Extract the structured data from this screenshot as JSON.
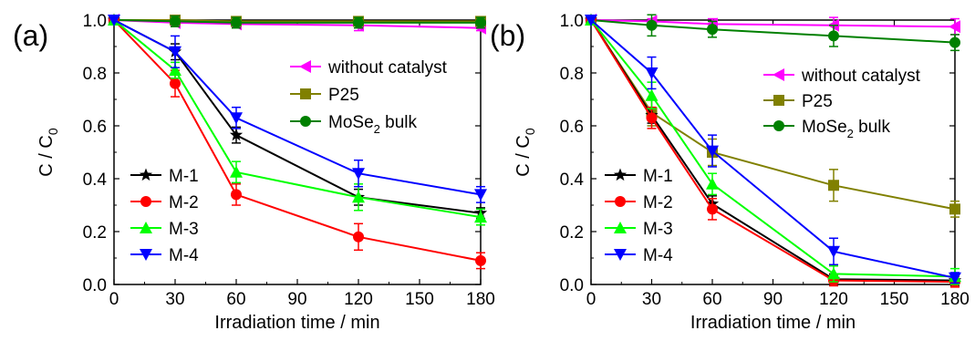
{
  "chart_data": [
    {
      "type": "line",
      "panel_label": "(a)",
      "xlabel": "Irradiation time / min",
      "ylabel": "C / C",
      "ylabel_sub": "0",
      "xlim": [
        0,
        180
      ],
      "ylim": [
        0.0,
        1.0
      ],
      "xticks": [
        "0",
        "30",
        "60",
        "90",
        "120",
        "150",
        "180"
      ],
      "yticks": [
        "0.0",
        "0.2",
        "0.4",
        "0.6",
        "0.8",
        "1.0"
      ],
      "x": [
        0,
        30,
        60,
        120,
        180
      ],
      "series": [
        {
          "name": "without catalyst",
          "marker": "triangle-left",
          "color": "#ff00ff",
          "values": [
            1.0,
            0.99,
            0.985,
            0.98,
            0.97
          ],
          "errors": [
            0,
            0.01,
            0.01,
            0.02,
            0.01
          ]
        },
        {
          "name": "P25",
          "marker": "square",
          "color": "#808000",
          "values": [
            1.0,
            1.0,
            0.995,
            0.995,
            0.995
          ],
          "errors": [
            0,
            0.01,
            0.01,
            0.01,
            0.01
          ]
        },
        {
          "name": "MoSe",
          "name_sub": "2",
          "name_suffix": " bulk",
          "marker": "circle",
          "color": "#008000",
          "values": [
            1.0,
            0.995,
            0.99,
            0.99,
            0.99
          ],
          "errors": [
            0,
            0.02,
            0.02,
            0.02,
            0.02
          ]
        },
        {
          "name": "M-1",
          "marker": "star",
          "color": "#000000",
          "values": [
            1.0,
            0.88,
            0.565,
            0.33,
            0.27
          ],
          "errors": [
            0,
            0.03,
            0.03,
            0.03,
            0.02
          ]
        },
        {
          "name": "M-2",
          "marker": "circle",
          "color": "#ff0000",
          "values": [
            1.0,
            0.76,
            0.34,
            0.18,
            0.09
          ],
          "errors": [
            0,
            0.05,
            0.04,
            0.05,
            0.03
          ]
        },
        {
          "name": "M-3",
          "marker": "triangle-up",
          "color": "#00ff00",
          "values": [
            1.0,
            0.81,
            0.425,
            0.33,
            0.255
          ],
          "errors": [
            0,
            0.03,
            0.04,
            0.05,
            0.03
          ]
        },
        {
          "name": "M-4",
          "marker": "triangle-down",
          "color": "#0000ff",
          "values": [
            1.0,
            0.88,
            0.63,
            0.42,
            0.34
          ],
          "errors": [
            0,
            0.06,
            0.04,
            0.05,
            0.03
          ]
        }
      ]
    },
    {
      "type": "line",
      "panel_label": "(b)",
      "xlabel": "Irradiation time / min",
      "ylabel": "C / C",
      "ylabel_sub": "0",
      "xlim": [
        0,
        180
      ],
      "ylim": [
        0.0,
        1.0
      ],
      "xticks": [
        "0",
        "30",
        "60",
        "90",
        "120",
        "150",
        "180"
      ],
      "yticks": [
        "0.0",
        "0.2",
        "0.4",
        "0.6",
        "0.8",
        "1.0"
      ],
      "x": [
        0,
        30,
        60,
        120,
        180
      ],
      "series": [
        {
          "name": "without catalyst",
          "marker": "triangle-left",
          "color": "#ff00ff",
          "values": [
            1.0,
            0.995,
            0.985,
            0.98,
            0.975
          ],
          "errors": [
            0,
            0.01,
            0.02,
            0.03,
            0.03
          ]
        },
        {
          "name": "P25",
          "marker": "square",
          "color": "#808000",
          "values": [
            1.0,
            0.65,
            0.5,
            0.375,
            0.285
          ],
          "errors": [
            0,
            0.05,
            0.05,
            0.06,
            0.03
          ]
        },
        {
          "name": "MoSe",
          "name_sub": "2",
          "name_suffix": " bulk",
          "marker": "circle",
          "color": "#008000",
          "values": [
            1.0,
            0.98,
            0.965,
            0.94,
            0.915
          ],
          "errors": [
            0,
            0.04,
            0.03,
            0.04,
            0.03
          ]
        },
        {
          "name": "M-1",
          "marker": "star",
          "color": "#000000",
          "values": [
            1.0,
            0.64,
            0.305,
            0.02,
            0.015
          ],
          "errors": [
            0,
            0.03,
            0.03,
            0.02,
            0.02
          ]
        },
        {
          "name": "M-2",
          "marker": "circle",
          "color": "#ff0000",
          "values": [
            1.0,
            0.63,
            0.285,
            0.015,
            0.01
          ],
          "errors": [
            0,
            0.04,
            0.04,
            0.02,
            0.02
          ]
        },
        {
          "name": "M-3",
          "marker": "triangle-up",
          "color": "#00ff00",
          "values": [
            1.0,
            0.715,
            0.38,
            0.04,
            0.03
          ],
          "errors": [
            0,
            0.05,
            0.04,
            0.03,
            0.03
          ]
        },
        {
          "name": "M-4",
          "marker": "triangle-down",
          "color": "#0000ff",
          "values": [
            1.0,
            0.8,
            0.505,
            0.125,
            0.025
          ],
          "errors": [
            0,
            0.06,
            0.06,
            0.05,
            0.02
          ]
        }
      ]
    }
  ]
}
